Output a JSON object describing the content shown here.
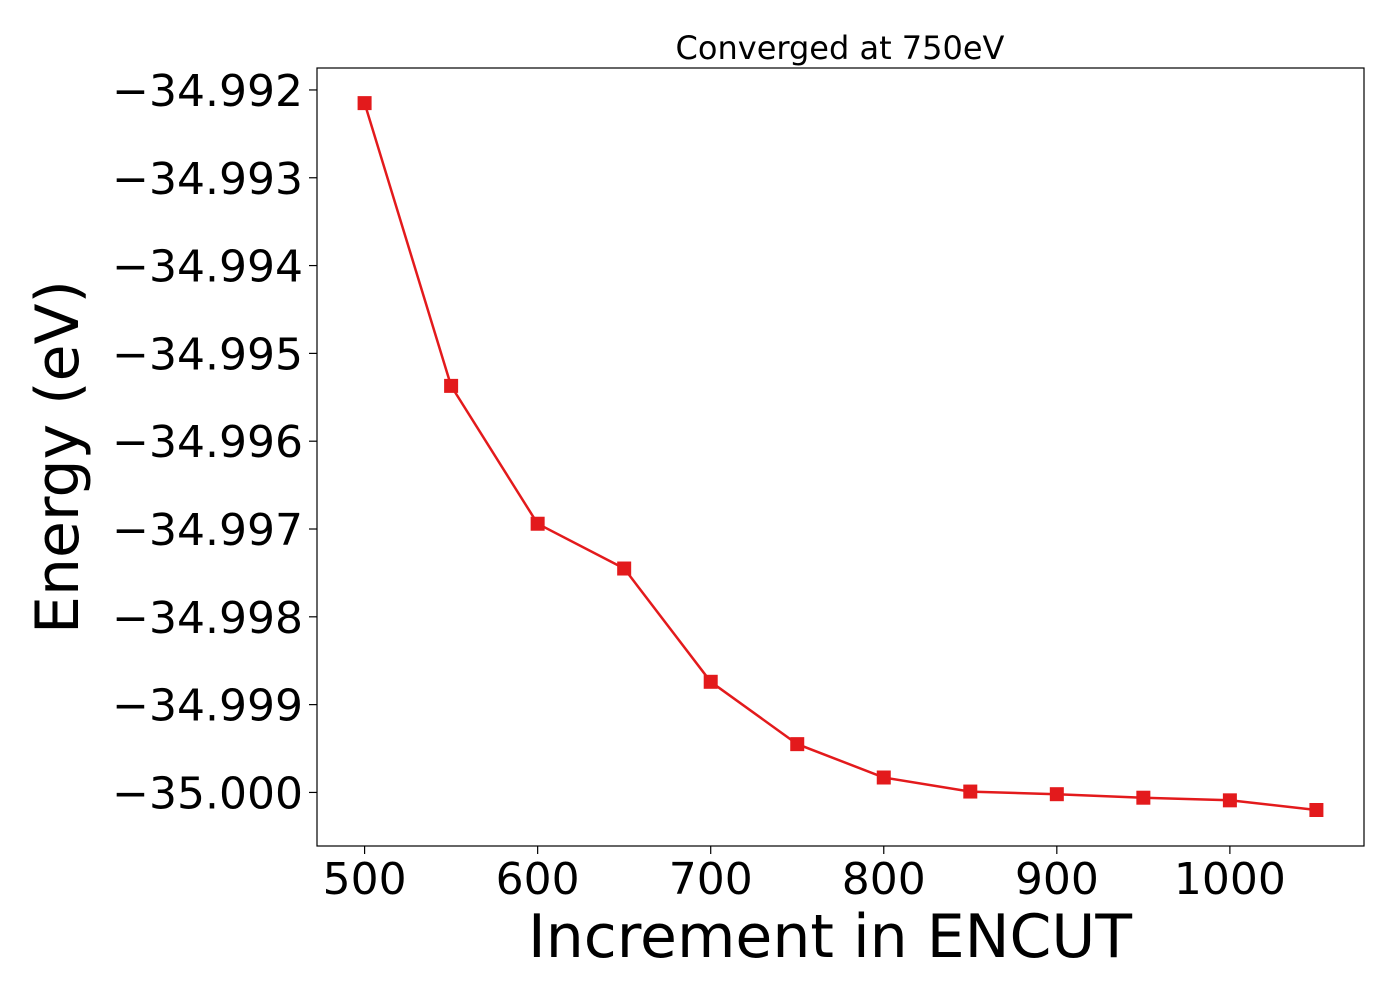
{
  "chart_data": {
    "type": "line",
    "title": "Converged at 750eV",
    "xlabel": "Increment in ENCUT",
    "ylabel": "Energy (eV)",
    "x": [
      500,
      550,
      600,
      650,
      700,
      750,
      800,
      850,
      900,
      950,
      1000,
      1050
    ],
    "series": [
      {
        "values": [
          -34.99215,
          -34.99537,
          -34.99694,
          -34.99745,
          -34.99874,
          -34.99945,
          -34.99983,
          -34.99999,
          -35.00002,
          -35.00006,
          -35.00009,
          -35.0002
        ],
        "color": "#e31a1c",
        "marker": "square"
      }
    ],
    "xlim": [
      472.5,
      1077.5
    ],
    "ylim": [
      -35.00061,
      -34.99175
    ],
    "xticks": [
      500,
      600,
      700,
      800,
      900,
      1000
    ],
    "xtick_labels": [
      "500",
      "600",
      "700",
      "800",
      "900",
      "1000"
    ],
    "yticks": [
      -34.992,
      -34.993,
      -34.994,
      -34.995,
      -34.996,
      -34.997,
      -34.998,
      -34.999,
      -35.0
    ],
    "ytick_labels": [
      "−34.992",
      "−34.993",
      "−34.994",
      "−34.995",
      "−34.996",
      "−34.997",
      "−34.998",
      "−34.999",
      "−35.000"
    ],
    "grid": false
  }
}
